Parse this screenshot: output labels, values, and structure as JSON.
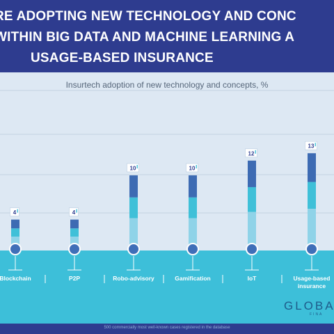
{
  "header": {
    "line1": "RE ADOPTING NEW TECHNOLOGY AND CONC",
    "line2": "WITHIN BIG DATA AND MACHINE LEARNING A",
    "line3": "USAGE-BASED INSURANCE"
  },
  "footer": {
    "note": "500 commercially most well-known cases registered in the database"
  },
  "logo": {
    "text": "GLOBA",
    "subtext": "FINA"
  },
  "colors": {
    "dark": "#3d6bb3",
    "mid": "#3fc0d8",
    "light": "#8fd3e8",
    "floor": "#3dbfd9",
    "header": "#2e3c8f"
  },
  "chart_data": {
    "type": "bar",
    "title": "Insurtech adoption of new technology and concepts, %",
    "categories": [
      "Blockchain",
      "P2P",
      "Robo-advisory",
      "Gamification",
      "IoT",
      "Usage-based insurance"
    ],
    "values": [
      4,
      4,
      10,
      10,
      12,
      13
    ],
    "value_labels": [
      "4",
      "4",
      "10",
      "10",
      "12",
      "13"
    ],
    "grid": true,
    "ylim": [
      0,
      14
    ]
  }
}
